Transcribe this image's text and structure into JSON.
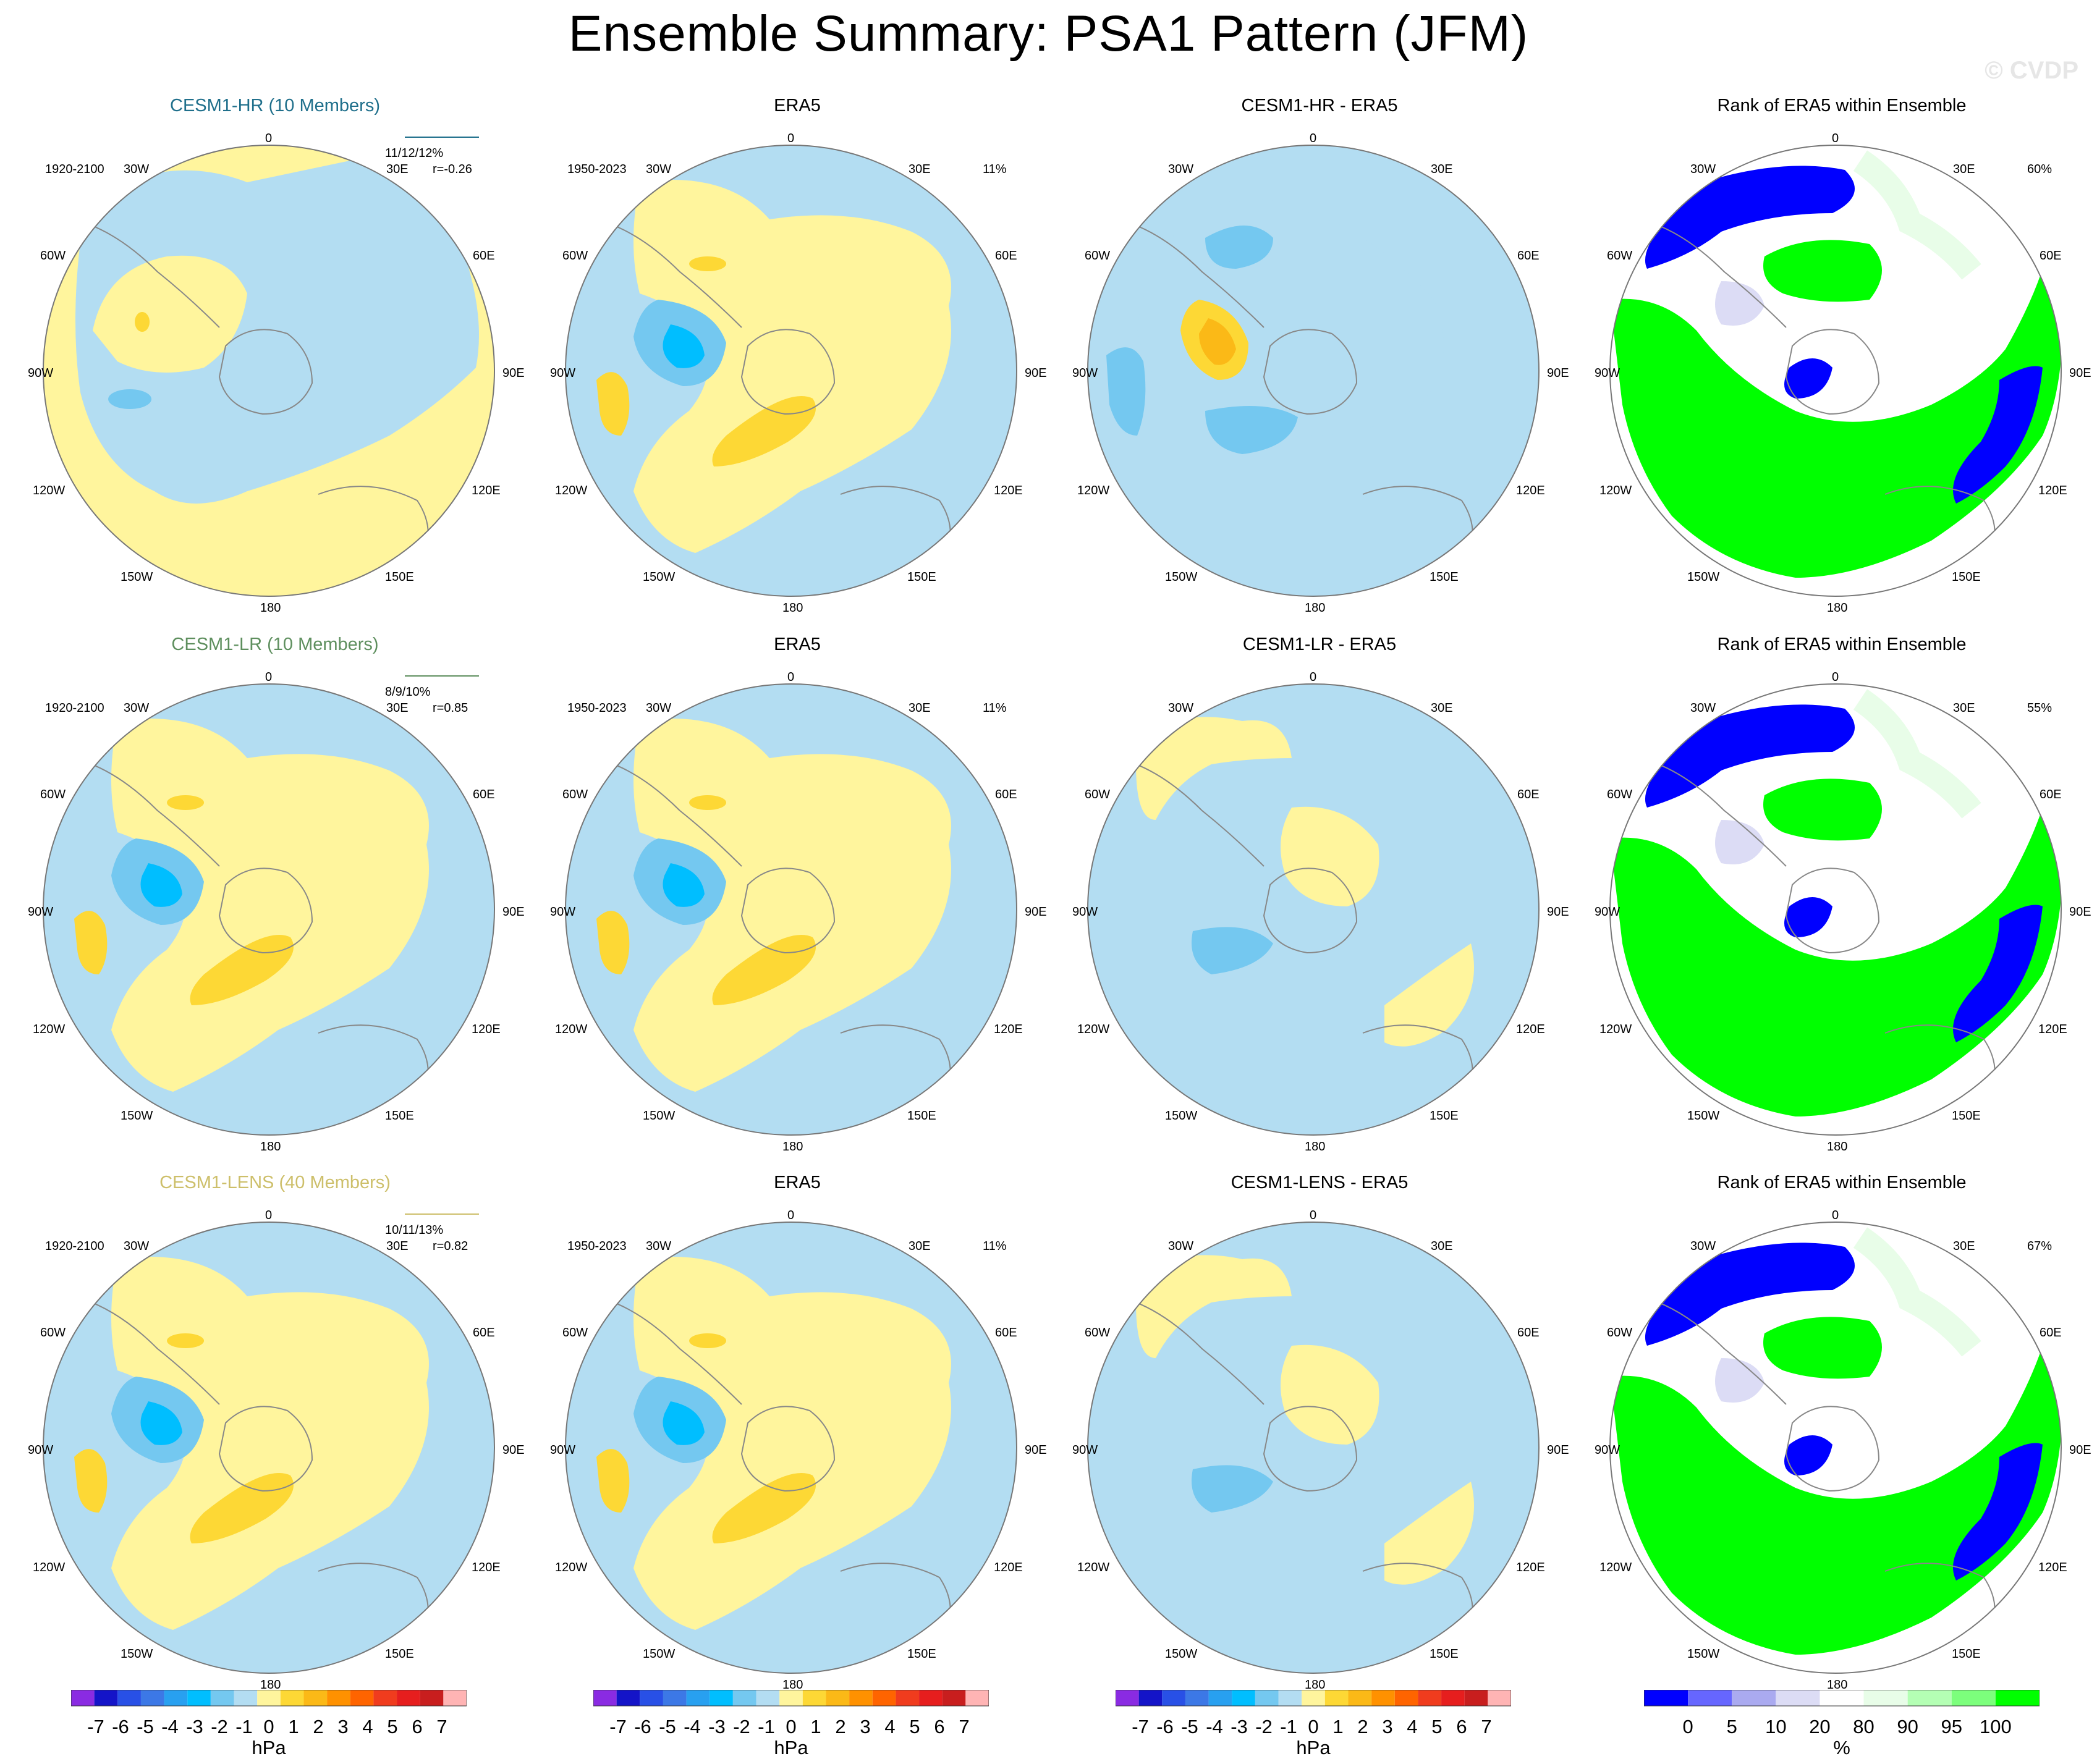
{
  "title": "Ensemble Summary: PSA1 Pattern (JFM)",
  "watermark": "© CVDP",
  "geo_labels": {
    "top": "0",
    "bottom": "180",
    "30W": "30W",
    "30E": "30E",
    "60W": "60W",
    "60E": "60E",
    "90W": "90W",
    "90E": "90E",
    "120W": "120W",
    "120E": "120E",
    "150W": "150W",
    "150E": "150E"
  },
  "rows": [
    {
      "model": {
        "title": "CESM1-HR (10 Members)",
        "years": "1920-2100",
        "pct": "11/12/12%",
        "r": "r=-0.26",
        "color": "#1f6f8b"
      },
      "obs": {
        "title": "ERA5",
        "years": "1950-2023",
        "pct": "11%"
      },
      "diff": {
        "title": "CESM1-HR - ERA5"
      },
      "rank": {
        "title": "Rank of ERA5 within Ensemble",
        "pct": "60%"
      }
    },
    {
      "model": {
        "title": "CESM1-LR (10 Members)",
        "years": "1920-2100",
        "pct": "8/9/10%",
        "r": "r=0.85",
        "color": "#5e8f5e"
      },
      "obs": {
        "title": "ERA5",
        "years": "1950-2023",
        "pct": "11%"
      },
      "diff": {
        "title": "CESM1-LR - ERA5"
      },
      "rank": {
        "title": "Rank of ERA5 within Ensemble",
        "pct": "55%"
      }
    },
    {
      "model": {
        "title": "CESM1-LENS (40 Members)",
        "years": "1920-2100",
        "pct": "10/11/13%",
        "r": "r=0.82",
        "color": "#cdbf6a"
      },
      "obs": {
        "title": "ERA5",
        "years": "1950-2023",
        "pct": "11%"
      },
      "diff": {
        "title": "CESM1-LENS - ERA5"
      },
      "rank": {
        "title": "Rank of ERA5 within Ensemble",
        "pct": "67%"
      }
    }
  ],
  "colorbar_hpa": {
    "ticks": [
      "-7",
      "-6",
      "-5",
      "-4",
      "-3",
      "-2",
      "-1",
      "0",
      "1",
      "2",
      "3",
      "4",
      "5",
      "6",
      "7"
    ],
    "unit": "hPa",
    "colors": [
      "#8a2be2",
      "#1414c8",
      "#2850e6",
      "#3c78e6",
      "#28a0f0",
      "#00beff",
      "#74c8f0",
      "#b3ddf2",
      "#fff59d",
      "#fdd835",
      "#fbb917",
      "#ff9100",
      "#ff6400",
      "#f03c1e",
      "#e61e1e",
      "#c81e1e",
      "#ffb4b4"
    ]
  },
  "colorbar_pct": {
    "ticks": [
      "0",
      "5",
      "10",
      "20",
      "80",
      "90",
      "95",
      "100"
    ],
    "unit": "%",
    "colors": [
      "#0000ff",
      "#6666ff",
      "#aaaaf0",
      "#dcdcf5",
      "#ffffff",
      "#e8fde8",
      "#b4ffb4",
      "#7cff7c",
      "#00ff00"
    ]
  },
  "map_colors": {
    "pos1": "#fff59d",
    "neg1": "#b3ddf2",
    "pos2": "#fdd835",
    "neg2": "#74c8f0",
    "pos3": "#fbb917",
    "neg3": "#00beff",
    "rank_low": "#0000ff",
    "rank_mid": "#ffffff",
    "rank_high": "#00ff00",
    "rank_lightgreen": "#e8fde8",
    "rank_lavender": "#dcdcf5"
  }
}
